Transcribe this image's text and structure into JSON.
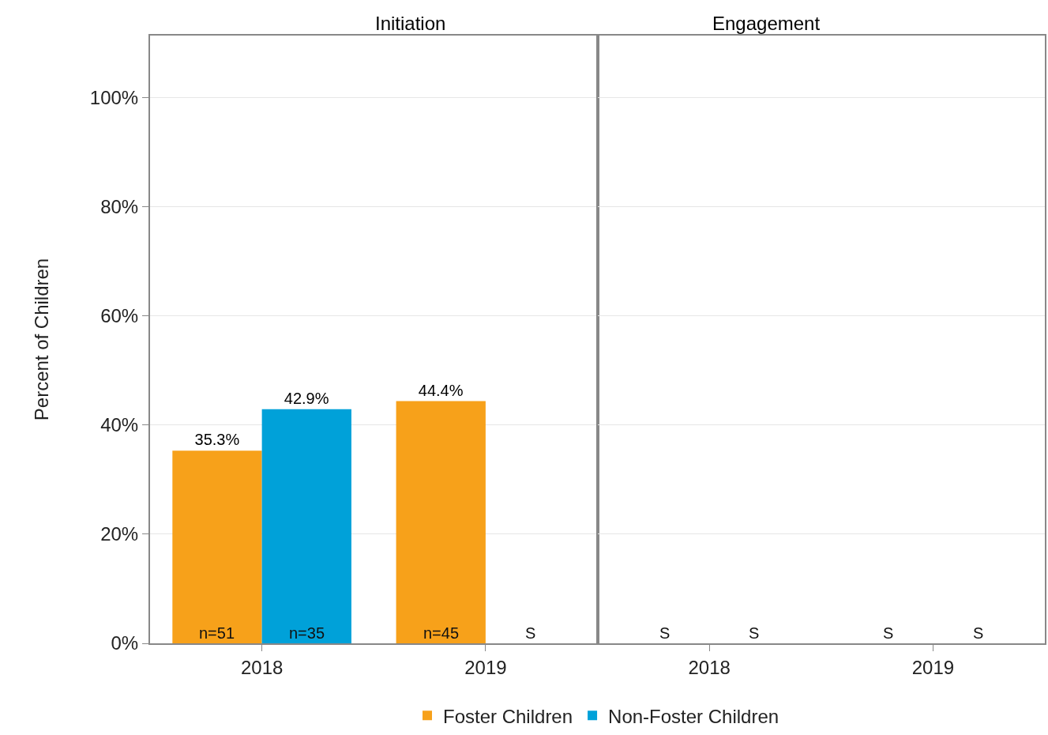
{
  "chart_data": [
    {
      "type": "bar",
      "title": "Initiation",
      "ylabel": "Percent of Children",
      "categories": [
        "2018",
        "2019"
      ],
      "series": [
        {
          "name": "Foster Children",
          "color": "#f7a11a",
          "values": [
            35.3,
            44.4
          ],
          "value_labels": [
            "35.3%",
            "44.4%"
          ]
        },
        {
          "name": "Non-Foster Children",
          "color": "#00a1d9",
          "values": [
            42.9,
            null
          ],
          "value_labels": [
            "42.9%",
            null
          ]
        }
      ],
      "annotations": [
        "n=51",
        "n=35",
        "n=45",
        "S"
      ],
      "ylim": [
        0,
        111.4
      ],
      "yticks": [
        {
          "value": 0,
          "label": "0%"
        },
        {
          "value": 20,
          "label": "20%"
        },
        {
          "value": 40,
          "label": "40%"
        },
        {
          "value": 60,
          "label": "60%"
        },
        {
          "value": 80,
          "label": "80%"
        },
        {
          "value": 100,
          "label": "100%"
        }
      ],
      "grid": "y",
      "legend": "bottom"
    },
    {
      "type": "bar",
      "title": "Engagement",
      "categories": [
        "2018",
        "2019"
      ],
      "series": [
        {
          "values": [
            null,
            null
          ]
        },
        {
          "values": [
            null,
            null
          ]
        }
      ],
      "annotations": [
        "S",
        "S",
        "S",
        "S"
      ],
      "ylim": [
        0,
        111.4
      ],
      "yticks": [
        {
          "value": 0,
          "label": null
        },
        {
          "value": 20,
          "label": null
        },
        {
          "value": 40,
          "label": null
        },
        {
          "value": 60,
          "label": null
        },
        {
          "value": 80,
          "label": null
        },
        {
          "value": 100,
          "label": null
        }
      ],
      "grid": "y",
      "tick_labels": "x"
    }
  ]
}
